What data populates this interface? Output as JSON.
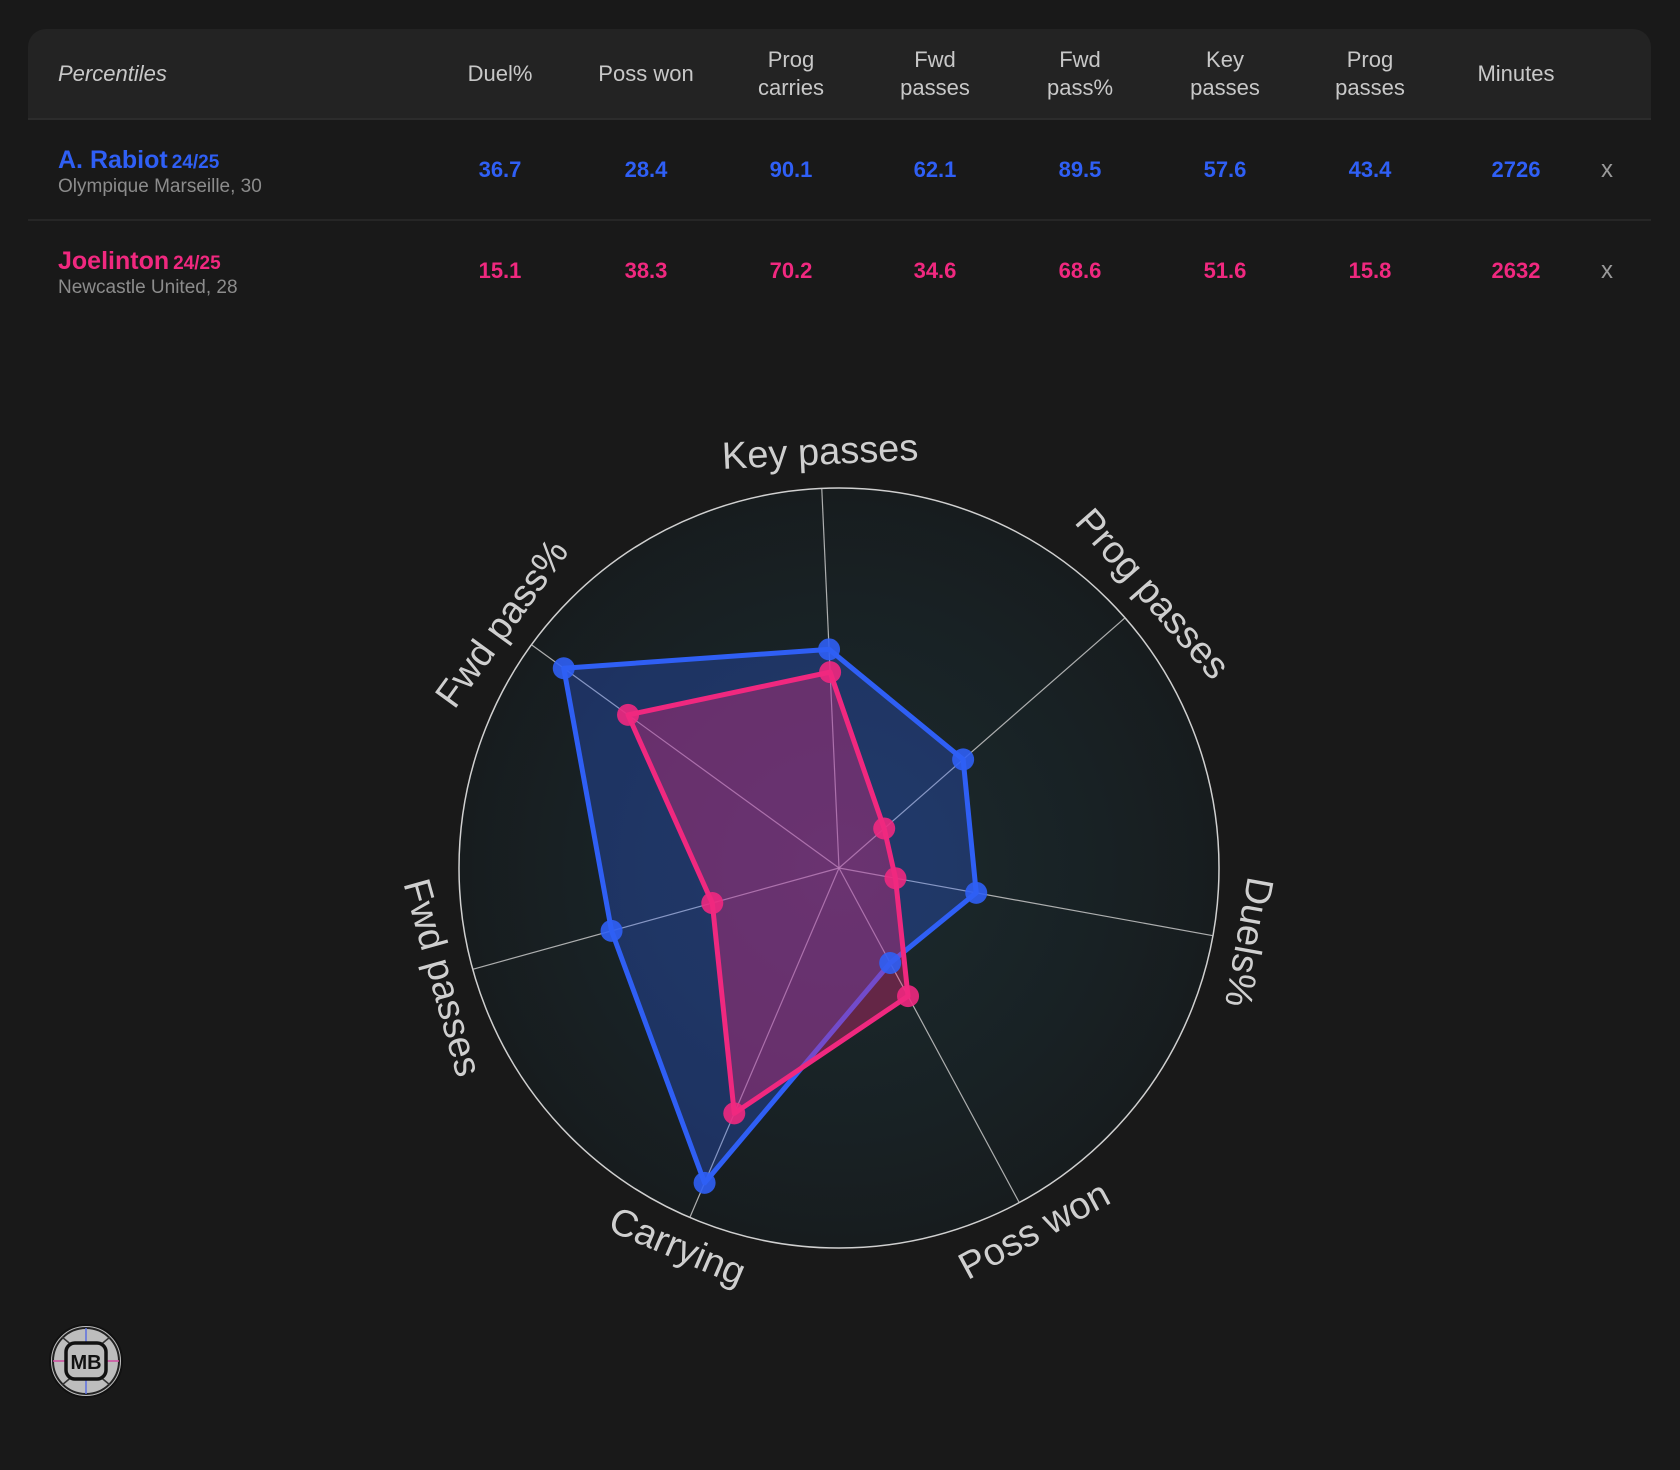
{
  "table": {
    "header_label": "Percentiles",
    "columns": [
      "Duel%",
      "Poss won",
      "Prog\ncarries",
      "Fwd\npasses",
      "Fwd\npass%",
      "Key\npasses",
      "Prog\npasses",
      "Minutes"
    ],
    "remove_label": "x",
    "players": [
      {
        "name": "A. Rabiot",
        "season": "24/25",
        "team": "Olympique Marseille, 30",
        "color": "#2f5ff5",
        "values": [
          "36.7",
          "28.4",
          "90.1",
          "62.1",
          "89.5",
          "57.6",
          "43.4",
          "2726"
        ]
      },
      {
        "name": "Joelinton",
        "season": "24/25",
        "team": "Newcastle United, 28",
        "color": "#f0287f",
        "values": [
          "15.1",
          "38.3",
          "70.2",
          "34.6",
          "68.6",
          "51.6",
          "15.8",
          "2632"
        ]
      }
    ]
  },
  "chart_data": {
    "type": "radar",
    "axes": [
      "Key passes",
      "Prog passes",
      "Duels%",
      "Poss won",
      "Carrying",
      "Fwd passes",
      "Fwd pass%"
    ],
    "range": [
      0,
      100
    ],
    "series": [
      {
        "name": "A. Rabiot",
        "color": "#2f5ff5",
        "values": [
          57.6,
          43.4,
          36.7,
          28.4,
          90.1,
          62.1,
          89.5
        ]
      },
      {
        "name": "Joelinton",
        "color": "#f0287f",
        "values": [
          51.6,
          15.8,
          15.1,
          38.3,
          70.2,
          34.6,
          68.6
        ]
      }
    ]
  },
  "logo": {
    "text": "MB"
  }
}
